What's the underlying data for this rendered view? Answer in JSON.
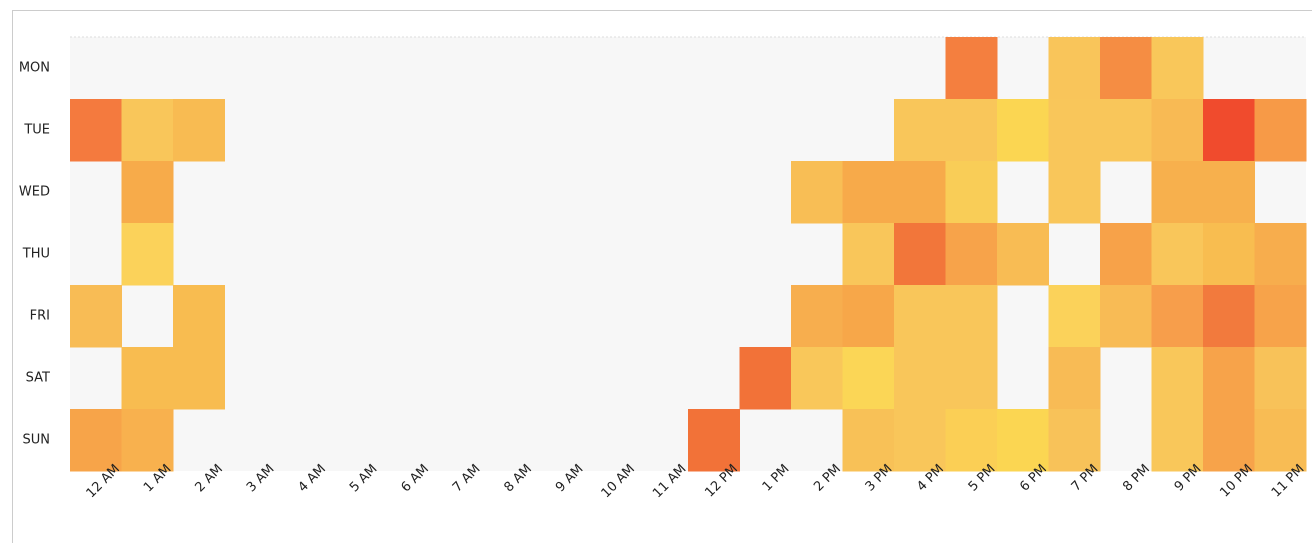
{
  "chart_data": {
    "type": "heatmap",
    "x_categories": [
      "12 AM",
      "1 AM",
      "2 AM",
      "3 AM",
      "4 AM",
      "5 AM",
      "6 AM",
      "7 AM",
      "8 AM",
      "9 AM",
      "10 AM",
      "11 AM",
      "12 PM",
      "1 PM",
      "2 PM",
      "3 PM",
      "4 PM",
      "5 PM",
      "6 PM",
      "7 PM",
      "8 PM",
      "9 PM",
      "10 PM",
      "11 PM"
    ],
    "y_categories": [
      "MON",
      "TUE",
      "WED",
      "THU",
      "FRI",
      "SAT",
      "SUN"
    ],
    "cell_colors": [
      [
        null,
        null,
        null,
        null,
        null,
        null,
        null,
        null,
        null,
        null,
        null,
        null,
        null,
        null,
        null,
        null,
        null,
        "#f47f3f",
        null,
        "#f9c55a",
        "#f58d43",
        "#f9c75a",
        null,
        null
      ],
      [
        "#f47a3e",
        "#f9c65a",
        "#f8bb52",
        null,
        null,
        null,
        null,
        null,
        null,
        null,
        null,
        null,
        null,
        null,
        null,
        null,
        "#f9c65a",
        "#f9c65a",
        "#fbd652",
        "#f9c65a",
        "#f9c65a",
        "#f8ba54",
        "#f04b2d",
        "#f79a47"
      ],
      [
        null,
        "#f7ab4a",
        null,
        null,
        null,
        null,
        null,
        null,
        null,
        null,
        null,
        null,
        null,
        null,
        "#f8be55",
        "#f7aa4a",
        "#f7aa4a",
        "#f9cd57",
        null,
        "#f9c65a",
        null,
        "#f7b04d",
        "#f7b04d",
        null
      ],
      [
        null,
        "#fbd25a",
        null,
        null,
        null,
        null,
        null,
        null,
        null,
        null,
        null,
        null,
        null,
        null,
        null,
        "#f9c65a",
        "#f2763a",
        "#f7a34a",
        "#f8bc54",
        null,
        "#f7a249",
        "#f9c65a",
        "#f8bd50",
        "#f7ad4d"
      ],
      [
        "#f8bc55",
        null,
        "#f8bc50",
        null,
        null,
        null,
        null,
        null,
        null,
        null,
        null,
        null,
        null,
        null,
        "#f7ae4e",
        "#f7a749",
        "#f9c65a",
        "#f9c65a",
        null,
        "#fbd25a",
        "#f8bb55",
        "#f79e4b",
        "#f27a3d",
        "#f7a34a"
      ],
      [
        null,
        "#f8bc50",
        "#f8bc50",
        null,
        null,
        null,
        null,
        null,
        null,
        null,
        null,
        null,
        null,
        "#f27238",
        "#f9c75a",
        "#fbd656",
        "#f9c65a",
        "#f9c65a",
        null,
        "#f8bb55",
        null,
        "#f9c75a",
        "#f7a34a",
        "#f8c259"
      ],
      [
        "#f7a449",
        "#f8b14e",
        null,
        null,
        null,
        null,
        null,
        null,
        null,
        null,
        null,
        null,
        "#f27238",
        null,
        null,
        "#f8c157",
        "#f9c65a",
        "#fbcf55",
        "#fbd652",
        "#f8c259",
        null,
        "#f9c75a",
        "#f7a34a",
        "#f8bc54"
      ]
    ]
  }
}
